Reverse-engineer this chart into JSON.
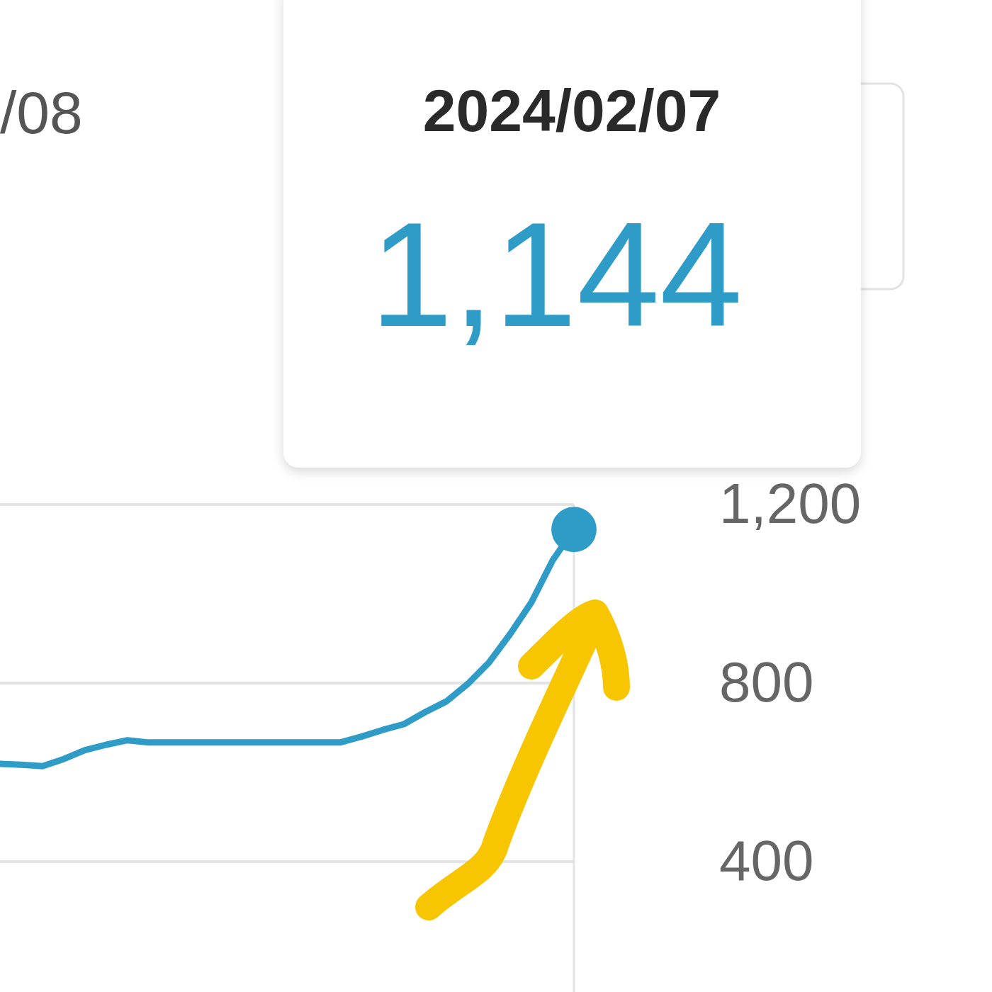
{
  "chart_data": {
    "type": "line",
    "categories": [
      null,
      null,
      null,
      null,
      null,
      null,
      null,
      null,
      null,
      null,
      null,
      null,
      null,
      null,
      null,
      null,
      null,
      null,
      null,
      null,
      null,
      null,
      null,
      null,
      null,
      null,
      null,
      null
    ],
    "series": [
      {
        "color": "#2f9cc8",
        "values": [
          619,
          617,
          614,
          630,
          650,
          662,
          672,
          667,
          667,
          667,
          667,
          667,
          667,
          667,
          667,
          667,
          667,
          680,
          695,
          708,
          735,
          759,
          798,
          846,
          910,
          981,
          1075,
          1144
        ]
      },
      {
        "type": "scatter",
        "marker": "circle",
        "color": "#2f9cc8",
        "values": [
          null,
          null,
          null,
          null,
          null,
          null,
          null,
          null,
          null,
          null,
          null,
          null,
          null,
          null,
          null,
          null,
          null,
          null,
          null,
          null,
          null,
          null,
          null,
          null,
          null,
          null,
          null,
          1144
        ]
      }
    ],
    "ylim": [
      100,
      1200
    ],
    "yticks": [
      400,
      800,
      {
        "value": 1200,
        "label": "1,200"
      }
    ],
    "grid": "y",
    "tick_labels": "y",
    "annotations": [
      "2024/02/07",
      "1,144",
      "/08"
    ]
  }
}
